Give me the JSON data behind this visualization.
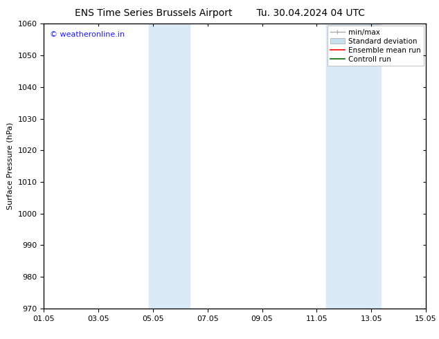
{
  "title_left": "ENS Time Series Brussels Airport",
  "title_right": "Tu. 30.04.2024 04 UTC",
  "ylabel": "Surface Pressure (hPa)",
  "ylim": [
    970,
    1060
  ],
  "yticks": [
    970,
    980,
    990,
    1000,
    1010,
    1020,
    1030,
    1040,
    1050,
    1060
  ],
  "xtick_labels": [
    "01.05",
    "03.05",
    "05.05",
    "07.05",
    "09.05",
    "11.05",
    "13.05",
    "15.05"
  ],
  "xtick_positions": [
    0,
    2,
    4,
    6,
    8,
    10,
    12,
    14
  ],
  "xlim": [
    0,
    14
  ],
  "shaded_regions": [
    {
      "x_start": 3.85,
      "x_end": 5.35
    },
    {
      "x_start": 10.35,
      "x_end": 12.35
    }
  ],
  "shade_color": "#daeaf7",
  "background_color": "#ffffff",
  "watermark_text": "© weatheronline.in",
  "watermark_color": "#1a1aff",
  "legend_labels": [
    "min/max",
    "Standard deviation",
    "Ensemble mean run",
    "Controll run"
  ],
  "legend_colors": [
    "#aaaaaa",
    "#c8dff0",
    "#ff0000",
    "#006600"
  ],
  "title_fontsize": 10,
  "axis_fontsize": 8,
  "tick_fontsize": 8,
  "watermark_fontsize": 8,
  "legend_fontsize": 7.5
}
